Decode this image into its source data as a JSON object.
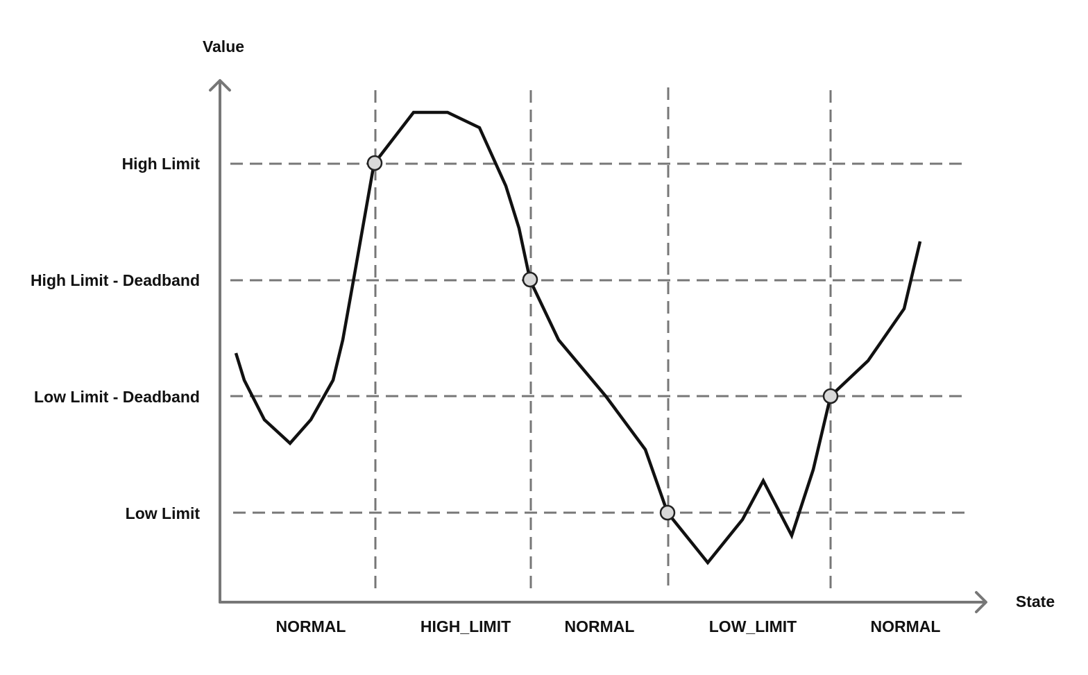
{
  "axes": {
    "y_label": "Value",
    "x_label": "State"
  },
  "levels": [
    {
      "id": "high-limit",
      "label": "High Limit"
    },
    {
      "id": "high-limit-deadband",
      "label": "High Limit - Deadband"
    },
    {
      "id": "low-limit-deadband",
      "label": "Low Limit - Deadband"
    },
    {
      "id": "low-limit",
      "label": "Low Limit"
    }
  ],
  "states": [
    "NORMAL",
    "HIGH_LIMIT",
    "NORMAL",
    "LOW_LIMIT",
    "NORMAL"
  ],
  "colors": {
    "axis": "#777777",
    "guide": "#777777",
    "signal": "#111111",
    "marker_fill": "#d9d9d9",
    "marker_stroke": "#222222"
  }
}
